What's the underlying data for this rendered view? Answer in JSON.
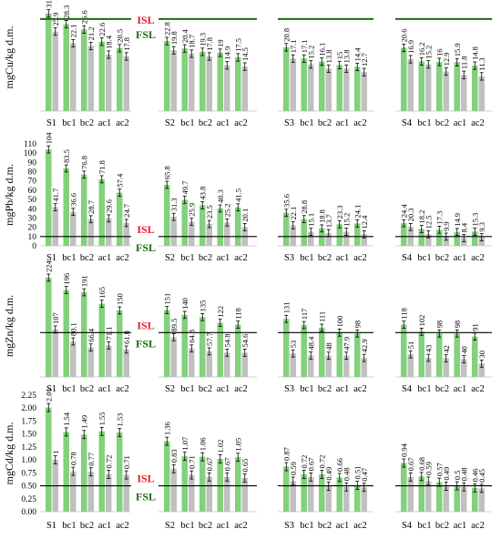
{
  "colors": {
    "green": "#82d17b",
    "grey": "#c0c0c0",
    "isl": "#e8192c",
    "fsl": "#1d6b12",
    "axis": "#000000"
  },
  "chart_data": [
    {
      "type": "bar",
      "id": "cu",
      "ylabel": "mgCu/kg d.m.",
      "ylim": [
        0,
        35
      ],
      "sites": [
        {
          "labels": [
            "S1",
            "bc1",
            "bc2",
            "ac1",
            "ac2"
          ],
          "green": [
            31.8,
            28.3,
            26.6,
            22.6,
            20.5
          ],
          "grey": [
            25.9,
            22.1,
            21.2,
            18.4,
            17.8
          ]
        },
        {
          "labels": [
            "S2",
            "bc1",
            "bc2",
            "ac1",
            "ac2"
          ],
          "green": [
            22.8,
            20.4,
            19.3,
            19.0,
            17.5
          ],
          "grey": [
            19.8,
            18.7,
            17.8,
            14.9,
            14.5
          ]
        },
        {
          "labels": [
            "S3",
            "bc1",
            "bc2",
            "ac1",
            "ac2"
          ],
          "green": [
            20.8,
            17.1,
            16.1,
            15.0,
            14.4
          ],
          "grey": [
            17.1,
            15.2,
            13.8,
            13.8,
            12.7
          ]
        },
        {
          "labels": [
            "S4",
            "bc1",
            "bc2",
            "ac1",
            "ac2"
          ],
          "green": [
            20.6,
            16.2,
            16.0,
            15.9,
            14.8
          ],
          "grey": [
            16.9,
            15.2,
            12.9,
            11.8,
            11.3
          ]
        }
      ],
      "thresholds": {
        "isl_label": "ISL",
        "isl": 30,
        "fsl_label": "FSL",
        "fsl": 30,
        "fsl_label_pos": "right",
        "isl_label_pos": "left"
      }
    },
    {
      "type": "bar",
      "id": "pb",
      "ylabel": "mgPb/kg d.m.",
      "ylim": [
        0,
        110
      ],
      "sites": [
        {
          "labels": [
            "S1",
            "bc1",
            "bc2",
            "ac1",
            "ac2"
          ],
          "green": [
            104,
            83.5,
            76.8,
            71.8,
            57.4
          ],
          "grey": [
            41.7,
            36.6,
            28.7,
            29.6,
            24.7
          ]
        },
        {
          "labels": [
            "S2",
            "bc1",
            "bc2",
            "ac1",
            "ac2"
          ],
          "green": [
            65.8,
            49.7,
            43.8,
            40.3,
            41.5
          ],
          "grey": [
            31.3,
            25.9,
            23.5,
            25.2,
            20.1
          ]
        },
        {
          "labels": [
            "S3",
            "bc1",
            "bc2",
            "ac1",
            "ac2"
          ],
          "green": [
            35.6,
            28.8,
            18.8,
            23.3,
            24.1
          ],
          "grey": [
            22.1,
            15.1,
            13.7,
            15.2,
            12.4
          ]
        },
        {
          "labels": [
            "S4",
            "bc1",
            "bc2",
            "ac1",
            "ac2"
          ],
          "green": [
            24.4,
            18.2,
            17.3,
            14.9,
            15.3
          ],
          "grey": [
            20.3,
            12.5,
            9.9,
            8.4,
            9.3
          ]
        }
      ],
      "thresholds": {
        "isl_label": "ISL",
        "isl": 10,
        "fsl_label": "FSL",
        "fsl": 10
      }
    },
    {
      "type": "bar",
      "id": "zn",
      "ylabel": "mgZn/kg d.m.",
      "ylim": [
        0,
        230
      ],
      "sites": [
        {
          "labels": [
            "S1",
            "bc1",
            "bc2",
            "ac1",
            "ac2"
          ],
          "green": [
            224,
            196,
            191,
            165,
            150
          ],
          "grey": [
            107,
            80.1,
            66.4,
            71.1,
            61.8
          ]
        },
        {
          "labels": [
            "S2",
            "bc1",
            "bc2",
            "ac1",
            "ac2"
          ],
          "green": [
            151,
            140,
            135,
            122,
            118
          ],
          "grey": [
            89.5,
            64.3,
            57.7,
            54.8,
            54.6
          ]
        },
        {
          "labels": [
            "S3",
            "bc1",
            "bc2",
            "ac1",
            "ac2"
          ],
          "green": [
            131,
            117,
            111,
            100,
            98
          ],
          "grey": [
            53,
            48.4,
            48,
            47.9,
            42.9
          ]
        },
        {
          "labels": [
            "S4",
            "bc1",
            "bc2",
            "ac1",
            "ac2"
          ],
          "green": [
            118,
            102,
            98,
            98,
            91
          ],
          "grey": [
            51,
            43,
            42,
            40,
            30
          ]
        }
      ],
      "thresholds": {
        "isl_label": "ISL",
        "isl": 100,
        "fsl_label": "FSL",
        "fsl": 100
      }
    },
    {
      "type": "bar",
      "id": "cd",
      "ylabel": "mgCd/kg d.m.",
      "ylim": [
        0,
        2.25
      ],
      "yticks": [
        "0.00",
        "0.25",
        "0.50",
        "0.75",
        "1.00",
        "1.25",
        "1.50",
        "1.75",
        "2.00",
        "2.25"
      ],
      "sites": [
        {
          "labels": [
            "S1",
            "bc1",
            "bc2",
            "ac1",
            "ac2"
          ],
          "green": [
            2.01,
            1.54,
            1.49,
            1.55,
            1.53
          ],
          "grey": [
            1.0,
            0.78,
            0.77,
            0.72,
            0.71
          ]
        },
        {
          "labels": [
            "S2",
            "bc1",
            "bc2",
            "ac1",
            "ac2"
          ],
          "green": [
            1.36,
            1.07,
            1.06,
            1.02,
            1.05
          ],
          "grey": [
            0.83,
            0.71,
            0.67,
            0.67,
            0.65
          ]
        },
        {
          "labels": [
            "S3",
            "bc1",
            "bc2",
            "ac1",
            "ac2"
          ],
          "green": [
            0.87,
            0.72,
            0.72,
            0.66,
            0.51
          ],
          "grey": [
            0.59,
            0.67,
            0.49,
            0.48,
            0.47
          ]
        },
        {
          "labels": [
            "S4",
            "bc1",
            "bc2",
            "ac1",
            "ac2"
          ],
          "green": [
            0.94,
            0.68,
            0.57,
            0.5,
            0.46
          ],
          "grey": [
            0.67,
            0.59,
            0.49,
            0.48,
            0.45
          ]
        }
      ],
      "thresholds": {
        "isl_label": "ISL",
        "isl": 0.5,
        "fsl_label": "FSL",
        "fsl": 0.5
      }
    }
  ]
}
